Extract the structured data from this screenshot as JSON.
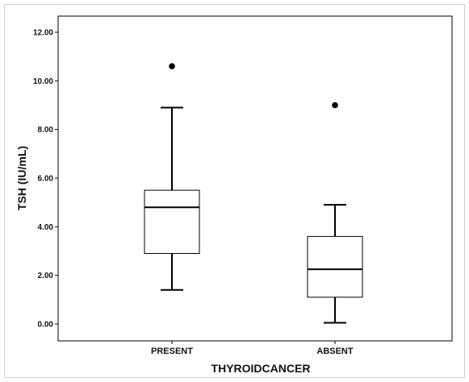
{
  "chart_data": {
    "type": "boxplot",
    "title": "",
    "xlabel": "THYROIDCANCER",
    "ylabel": "TSH (IU/mL)",
    "ylim": [
      -0.7,
      12.5
    ],
    "yticks": [
      "0.00",
      "2.00",
      "4.00",
      "6.00",
      "8.00",
      "10.00",
      "12.00"
    ],
    "ytick_values": [
      0,
      2,
      4,
      6,
      8,
      10,
      12
    ],
    "categories": [
      "PRESENT",
      "ABSENT"
    ],
    "boxes": [
      {
        "category": "PRESENT",
        "whisker_low": 1.4,
        "q1": 2.9,
        "median": 4.8,
        "q3": 5.5,
        "whisker_high": 8.9,
        "outliers": [
          10.6
        ]
      },
      {
        "category": "ABSENT",
        "whisker_low": 0.05,
        "q1": 1.1,
        "median": 2.25,
        "q3": 3.6,
        "whisker_high": 4.9,
        "outliers": [
          9.0
        ]
      }
    ],
    "grid": false,
    "legend": "none"
  }
}
